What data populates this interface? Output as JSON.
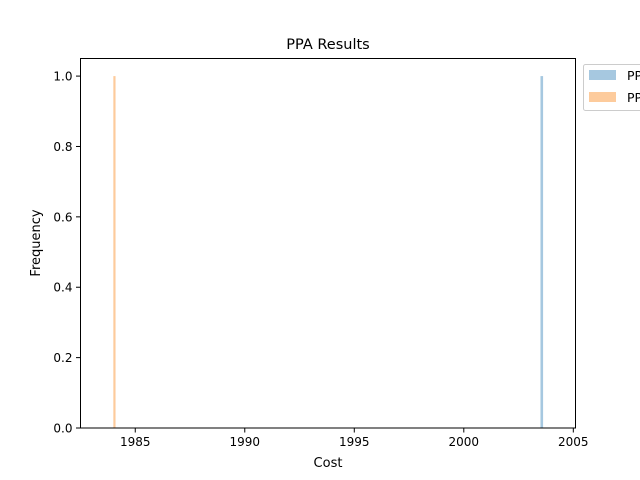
{
  "chart_data": {
    "type": "bar",
    "title": "PPA Results",
    "xlabel": "Cost",
    "ylabel": "Frequency",
    "xlim": [
      1982.5,
      2005.1
    ],
    "ylim": [
      0.0,
      1.05
    ],
    "xticks": [
      1985,
      1990,
      1995,
      2000,
      2005
    ],
    "yticks": [
      0.0,
      0.2,
      0.4,
      0.6,
      0.8,
      1.0
    ],
    "xtick_labels": [
      "1985",
      "1990",
      "1995",
      "2000",
      "2005"
    ],
    "ytick_labels": [
      "0.0",
      "0.2",
      "0.4",
      "0.6",
      "0.8",
      "1.0"
    ],
    "grid": false,
    "legend": {
      "placement": "outside-top-right"
    },
    "series": [
      {
        "name": "PP",
        "legend_label": "PP",
        "color": "#a6c8e0",
        "bins": [
          {
            "x_start": 2003.5,
            "x_end": 2003.62,
            "count": 1.0
          }
        ]
      },
      {
        "name": "PP",
        "legend_label": "PP",
        "color": "#fdcb9c",
        "bins": [
          {
            "x_start": 1984.0,
            "x_end": 1984.1,
            "count": 1.0
          }
        ]
      }
    ]
  }
}
